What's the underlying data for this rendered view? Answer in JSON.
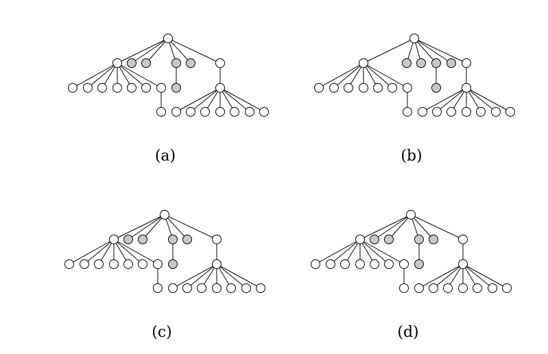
{
  "colors": {
    "node_white": "#ffffff",
    "node_grey": "#c8c8c8",
    "stroke": "#000000"
  },
  "panels": [
    {
      "caption": "(a)",
      "nodes": [
        {
          "id": "root",
          "fill": "white"
        },
        {
          "id": "A",
          "fill": "white"
        },
        {
          "id": "g1",
          "fill": "grey"
        },
        {
          "id": "g2",
          "fill": "grey"
        },
        {
          "id": "g3",
          "fill": "grey"
        },
        {
          "id": "g3c",
          "fill": "grey"
        },
        {
          "id": "g4",
          "fill": "grey"
        },
        {
          "id": "B",
          "fill": "white"
        },
        {
          "id": "Bc",
          "fill": "white"
        },
        {
          "id": "a1",
          "fill": "white"
        },
        {
          "id": "a2",
          "fill": "white"
        },
        {
          "id": "a3",
          "fill": "white"
        },
        {
          "id": "a4",
          "fill": "white"
        },
        {
          "id": "a5",
          "fill": "white"
        },
        {
          "id": "a6",
          "fill": "white"
        },
        {
          "id": "a7",
          "fill": "white"
        },
        {
          "id": "a7c",
          "fill": "white"
        },
        {
          "id": "b1",
          "fill": "white"
        },
        {
          "id": "b2",
          "fill": "white"
        },
        {
          "id": "b3",
          "fill": "white"
        },
        {
          "id": "b4",
          "fill": "white"
        },
        {
          "id": "b5",
          "fill": "white"
        },
        {
          "id": "b6",
          "fill": "white"
        },
        {
          "id": "b7",
          "fill": "white"
        }
      ],
      "edges": [
        [
          "root",
          "A"
        ],
        [
          "root",
          "g1"
        ],
        [
          "root",
          "g2"
        ],
        [
          "root",
          "g3"
        ],
        [
          "root",
          "g4"
        ],
        [
          "root",
          "B"
        ],
        [
          "g3",
          "g3c"
        ],
        [
          "B",
          "Bc"
        ],
        [
          "A",
          "a1"
        ],
        [
          "A",
          "a2"
        ],
        [
          "A",
          "a3"
        ],
        [
          "A",
          "a4"
        ],
        [
          "A",
          "a5"
        ],
        [
          "A",
          "a6"
        ],
        [
          "A",
          "a7"
        ],
        [
          "a7",
          "a7c"
        ],
        [
          "Bc",
          "b1"
        ],
        [
          "Bc",
          "b2"
        ],
        [
          "Bc",
          "b3"
        ],
        [
          "Bc",
          "b4"
        ],
        [
          "Bc",
          "b5"
        ],
        [
          "Bc",
          "b6"
        ],
        [
          "Bc",
          "b7"
        ]
      ]
    },
    {
      "caption": "(b)",
      "nodes": [
        {
          "id": "root",
          "fill": "white"
        },
        {
          "id": "A",
          "fill": "white"
        },
        {
          "id": "g1",
          "fill": "grey"
        },
        {
          "id": "g2",
          "fill": "grey"
        },
        {
          "id": "g3",
          "fill": "grey"
        },
        {
          "id": "g3c",
          "fill": "grey"
        },
        {
          "id": "g4",
          "fill": "grey"
        },
        {
          "id": "B",
          "fill": "white"
        },
        {
          "id": "Bc",
          "fill": "white"
        },
        {
          "id": "a1",
          "fill": "white"
        },
        {
          "id": "a2",
          "fill": "white"
        },
        {
          "id": "a3",
          "fill": "white"
        },
        {
          "id": "a4",
          "fill": "white"
        },
        {
          "id": "a5",
          "fill": "white"
        },
        {
          "id": "a6",
          "fill": "white"
        },
        {
          "id": "a7",
          "fill": "white"
        },
        {
          "id": "a7c",
          "fill": "white"
        },
        {
          "id": "b1",
          "fill": "white"
        },
        {
          "id": "b2",
          "fill": "white"
        },
        {
          "id": "b3",
          "fill": "white"
        },
        {
          "id": "b4",
          "fill": "white"
        },
        {
          "id": "b5",
          "fill": "white"
        },
        {
          "id": "b6",
          "fill": "white"
        },
        {
          "id": "b7",
          "fill": "white"
        }
      ],
      "edges": [
        [
          "root",
          "A"
        ],
        [
          "root",
          "g1"
        ],
        [
          "root",
          "g2"
        ],
        [
          "root",
          "g3"
        ],
        [
          "root",
          "g4"
        ],
        [
          "root",
          "B"
        ],
        [
          "g3",
          "g3c"
        ],
        [
          "B",
          "Bc"
        ],
        [
          "A",
          "a1"
        ],
        [
          "A",
          "a2"
        ],
        [
          "A",
          "a3"
        ],
        [
          "A",
          "a4"
        ],
        [
          "A",
          "a5"
        ],
        [
          "A",
          "a6"
        ],
        [
          "A",
          "a7"
        ],
        [
          "a7",
          "a7c"
        ],
        [
          "Bc",
          "b1"
        ],
        [
          "Bc",
          "b2"
        ],
        [
          "Bc",
          "b3"
        ],
        [
          "Bc",
          "b4"
        ],
        [
          "Bc",
          "b5"
        ],
        [
          "Bc",
          "b6"
        ],
        [
          "Bc",
          "b7"
        ]
      ]
    },
    {
      "caption": "(c)",
      "nodes": [
        {
          "id": "root",
          "fill": "white"
        },
        {
          "id": "A",
          "fill": "white"
        },
        {
          "id": "g1",
          "fill": "grey"
        },
        {
          "id": "g2",
          "fill": "grey"
        },
        {
          "id": "g3",
          "fill": "grey"
        },
        {
          "id": "g3c",
          "fill": "grey"
        },
        {
          "id": "g4",
          "fill": "grey"
        },
        {
          "id": "B",
          "fill": "white"
        },
        {
          "id": "Bc",
          "fill": "white"
        },
        {
          "id": "a1",
          "fill": "white"
        },
        {
          "id": "a2",
          "fill": "white"
        },
        {
          "id": "a3",
          "fill": "white"
        },
        {
          "id": "a4",
          "fill": "white"
        },
        {
          "id": "a5",
          "fill": "white"
        },
        {
          "id": "a6",
          "fill": "white"
        },
        {
          "id": "a7",
          "fill": "white"
        },
        {
          "id": "a7c",
          "fill": "white"
        },
        {
          "id": "b1",
          "fill": "white"
        },
        {
          "id": "b2",
          "fill": "white"
        },
        {
          "id": "b3",
          "fill": "white"
        },
        {
          "id": "b4",
          "fill": "white"
        },
        {
          "id": "b5",
          "fill": "white"
        },
        {
          "id": "b6",
          "fill": "white"
        },
        {
          "id": "b7",
          "fill": "white"
        }
      ],
      "edges": [
        [
          "root",
          "A"
        ],
        [
          "root",
          "g1"
        ],
        [
          "root",
          "g2"
        ],
        [
          "root",
          "g3"
        ],
        [
          "root",
          "g4"
        ],
        [
          "root",
          "B"
        ],
        [
          "g3",
          "g3c"
        ],
        [
          "B",
          "Bc"
        ],
        [
          "A",
          "a1"
        ],
        [
          "A",
          "a2"
        ],
        [
          "A",
          "a3"
        ],
        [
          "A",
          "a4"
        ],
        [
          "A",
          "a5"
        ],
        [
          "A",
          "a6"
        ],
        [
          "A",
          "a7"
        ],
        [
          "a7",
          "a7c"
        ],
        [
          "Bc",
          "b1"
        ],
        [
          "Bc",
          "b2"
        ],
        [
          "Bc",
          "b3"
        ],
        [
          "Bc",
          "b4"
        ],
        [
          "Bc",
          "b5"
        ],
        [
          "Bc",
          "b6"
        ],
        [
          "Bc",
          "b7"
        ]
      ]
    },
    {
      "caption": "(d)",
      "nodes": [
        {
          "id": "root",
          "fill": "white"
        },
        {
          "id": "A",
          "fill": "white"
        },
        {
          "id": "g1",
          "fill": "grey"
        },
        {
          "id": "g2",
          "fill": "grey"
        },
        {
          "id": "g3",
          "fill": "grey"
        },
        {
          "id": "g3c",
          "fill": "grey"
        },
        {
          "id": "g4",
          "fill": "grey"
        },
        {
          "id": "B",
          "fill": "white"
        },
        {
          "id": "Bc",
          "fill": "white"
        },
        {
          "id": "a1",
          "fill": "white"
        },
        {
          "id": "a2",
          "fill": "white"
        },
        {
          "id": "a3",
          "fill": "white"
        },
        {
          "id": "a4",
          "fill": "white"
        },
        {
          "id": "a5",
          "fill": "white"
        },
        {
          "id": "a6",
          "fill": "white"
        },
        {
          "id": "a7",
          "fill": "white"
        },
        {
          "id": "a7c",
          "fill": "white"
        },
        {
          "id": "b1",
          "fill": "white"
        },
        {
          "id": "b2",
          "fill": "white"
        },
        {
          "id": "b3",
          "fill": "white"
        },
        {
          "id": "b4",
          "fill": "white"
        },
        {
          "id": "b5",
          "fill": "white"
        },
        {
          "id": "b6",
          "fill": "white"
        },
        {
          "id": "b7",
          "fill": "white"
        }
      ],
      "edges": [
        [
          "root",
          "A"
        ],
        [
          "root",
          "g1"
        ],
        [
          "root",
          "g2"
        ],
        [
          "root",
          "g3"
        ],
        [
          "root",
          "g4"
        ],
        [
          "root",
          "B"
        ],
        [
          "g3",
          "g3c"
        ],
        [
          "B",
          "Bc"
        ],
        [
          "A",
          "a1"
        ],
        [
          "A",
          "a2"
        ],
        [
          "A",
          "a3"
        ],
        [
          "A",
          "a4"
        ],
        [
          "A",
          "a5"
        ],
        [
          "A",
          "a6"
        ],
        [
          "A",
          "a7"
        ],
        [
          "a7",
          "a7c"
        ],
        [
          "Bc",
          "b1"
        ],
        [
          "Bc",
          "b2"
        ],
        [
          "Bc",
          "b3"
        ],
        [
          "Bc",
          "b4"
        ],
        [
          "Bc",
          "b5"
        ],
        [
          "Bc",
          "b6"
        ],
        [
          "Bc",
          "b7"
        ]
      ]
    }
  ]
}
